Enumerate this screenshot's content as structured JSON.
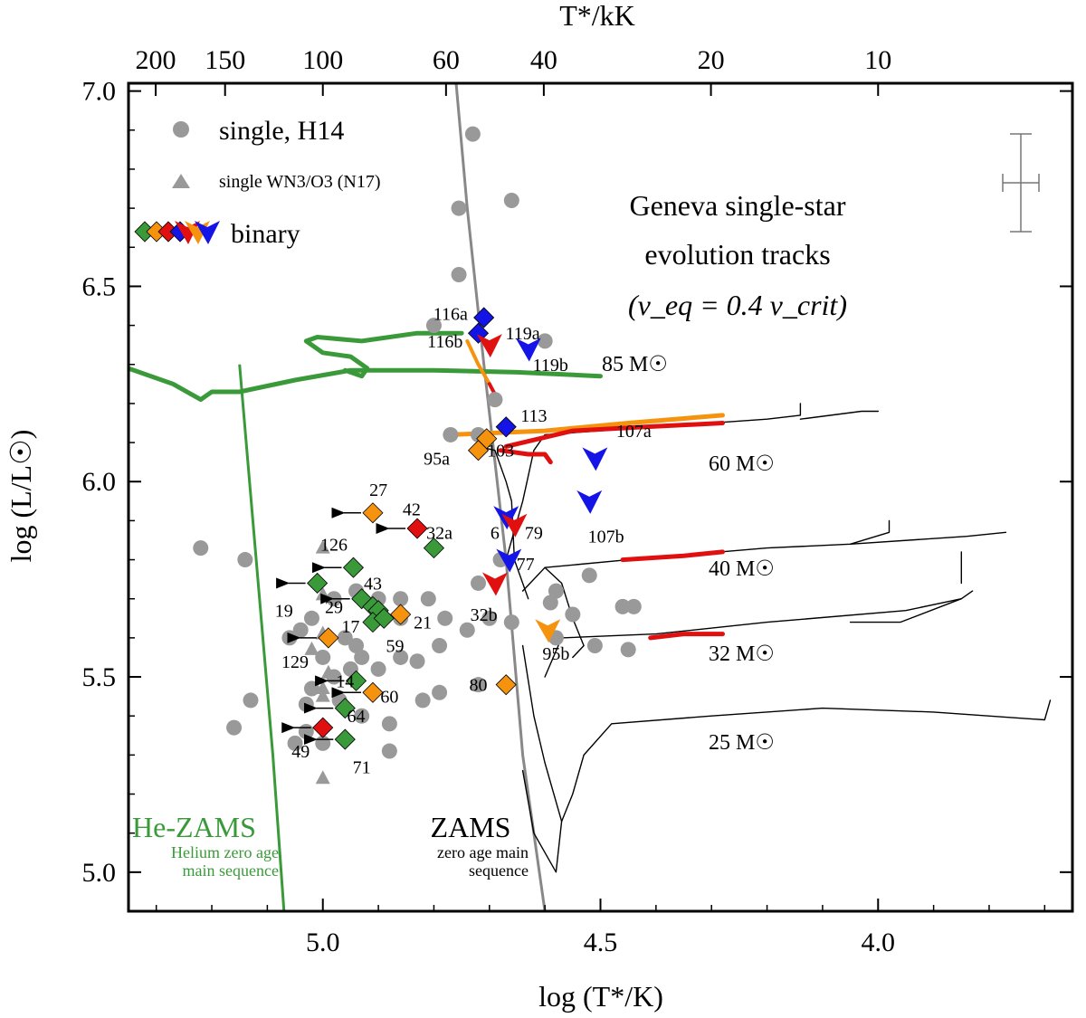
{
  "chart_data": {
    "type": "scatter",
    "title": "",
    "xlabel": "log (T*/K)",
    "ylabel": "log (L/L☉)",
    "top_xlabel": "T*/kK",
    "xlim": [
      5.35,
      3.65
    ],
    "ylim": [
      4.9,
      7.02
    ],
    "x_ticks": [
      5.0,
      4.5,
      4.0
    ],
    "x_tick_labels": [
      "5.0",
      "4.5",
      "4.0"
    ],
    "y_ticks": [
      5.0,
      5.5,
      6.0,
      6.5,
      7.0
    ],
    "y_tick_labels": [
      "5.0",
      "5.5",
      "6.0",
      "6.5",
      "7.0"
    ],
    "top_ticks_kK": [
      200,
      150,
      100,
      60,
      40,
      20,
      10
    ],
    "top_tick_labels": [
      "200",
      "150",
      "100",
      "60",
      "40",
      "20",
      "10"
    ],
    "colors": {
      "single": "#999999",
      "green": "#3a9a3a",
      "orange": "#f5930f",
      "red": "#e01010",
      "blue": "#1414e6",
      "track": "#000000",
      "zams": "#888888"
    },
    "legend": {
      "single": "single, H14",
      "single_wn3": "single WN3/O3 (N17)",
      "binary": "binary"
    },
    "annotation": {
      "line1": "Geneva single-star",
      "line2": "evolution tracks",
      "line3": "(v_eq = 0.4 v_crit)"
    },
    "he_zams": {
      "label": "He-ZAMS",
      "sub1": "Helium zero age",
      "sub2": "main sequence",
      "points": [
        [
          5.15,
          6.3
        ],
        [
          5.12,
          5.8
        ],
        [
          5.09,
          5.3
        ],
        [
          5.07,
          4.9
        ]
      ]
    },
    "zams": {
      "label": "ZAMS",
      "sub1": "zero age main",
      "sub2": "sequence",
      "points": [
        [
          4.6,
          4.9
        ],
        [
          4.64,
          5.3
        ],
        [
          4.67,
          5.8
        ],
        [
          4.71,
          6.3
        ],
        [
          4.74,
          6.7
        ],
        [
          4.76,
          7.02
        ]
      ]
    },
    "mass_labels": [
      "85 M☉",
      "60 M☉",
      "40 M☉",
      "32 M☉",
      "25 M☉"
    ],
    "tracks": [
      {
        "name": "85",
        "color": "#3a9a3a",
        "width": 5,
        "points": [
          [
            5.35,
            6.29
          ],
          [
            5.27,
            6.25
          ],
          [
            5.22,
            6.21
          ],
          [
            5.2,
            6.23
          ],
          [
            5.15,
            6.23
          ],
          [
            5.05,
            6.26
          ],
          [
            4.95,
            6.285
          ],
          [
            4.8,
            6.285
          ],
          [
            4.65,
            6.28
          ],
          [
            4.5,
            6.27
          ]
        ]
      },
      {
        "name": "85b",
        "color": "#3a9a3a",
        "width": 5,
        "points": [
          [
            4.96,
            6.285
          ],
          [
            4.93,
            6.27
          ],
          [
            4.92,
            6.29
          ],
          [
            4.95,
            6.32
          ],
          [
            5.0,
            6.33
          ],
          [
            5.03,
            6.36
          ],
          [
            5.01,
            6.37
          ],
          [
            4.93,
            6.36
          ],
          [
            4.83,
            6.38
          ],
          [
            4.75,
            6.38
          ]
        ]
      },
      {
        "name": "85c",
        "color": "#f5930f",
        "width": 4,
        "points": [
          [
            4.74,
            6.36
          ],
          [
            4.72,
            6.3
          ],
          [
            4.7,
            6.25
          ]
        ]
      },
      {
        "name": "85d",
        "color": "#e01010",
        "width": 4,
        "points": [
          [
            4.7,
            6.25
          ],
          [
            4.685,
            6.21
          ]
        ]
      },
      {
        "name": "60",
        "color": "#000000",
        "width": 1.4,
        "points": [
          [
            4.67,
            5.8
          ],
          [
            4.64,
            5.95
          ],
          [
            4.62,
            6.08
          ],
          [
            4.6,
            6.12
          ],
          [
            4.4,
            6.14
          ],
          [
            4.2,
            6.16
          ],
          [
            4.14,
            6.17
          ],
          [
            4.14,
            6.2
          ]
        ]
      },
      {
        "name": "60b",
        "color": "#000000",
        "width": 1.4,
        "points": [
          [
            4.14,
            6.16
          ],
          [
            4.03,
            6.18
          ],
          [
            4.0,
            6.18
          ]
        ]
      },
      {
        "name": "60o",
        "color": "#f5930f",
        "width": 5,
        "points": [
          [
            4.77,
            6.12
          ],
          [
            4.6,
            6.13
          ],
          [
            4.45,
            6.15
          ],
          [
            4.28,
            6.17
          ]
        ]
      },
      {
        "name": "60r",
        "color": "#e01010",
        "width": 5,
        "points": [
          [
            4.67,
            6.09
          ],
          [
            4.55,
            6.13
          ],
          [
            4.42,
            6.14
          ],
          [
            4.28,
            6.15
          ]
        ]
      },
      {
        "name": "60r2",
        "color": "#e01010",
        "width": 5,
        "points": [
          [
            4.68,
            6.08
          ],
          [
            4.63,
            6.07
          ],
          [
            4.6,
            6.07
          ],
          [
            4.59,
            6.05
          ]
        ]
      },
      {
        "name": "40",
        "color": "#000000",
        "width": 1.4,
        "points": [
          [
            4.64,
            5.72
          ],
          [
            4.6,
            5.78
          ],
          [
            4.45,
            5.8
          ],
          [
            4.2,
            5.83
          ],
          [
            4.05,
            5.84
          ],
          [
            3.98,
            5.87
          ],
          [
            3.98,
            5.9
          ]
        ]
      },
      {
        "name": "40b",
        "color": "#000000",
        "width": 1.4,
        "points": [
          [
            4.05,
            5.84
          ],
          [
            3.84,
            5.86
          ],
          [
            3.77,
            5.87
          ]
        ]
      },
      {
        "name": "40c",
        "color": "#000000",
        "width": 1.4,
        "points": [
          [
            4.6,
            5.78
          ],
          [
            4.57,
            5.74
          ],
          [
            4.55,
            5.65
          ],
          [
            4.53,
            5.58
          ],
          [
            4.55,
            5.55
          ]
        ]
      },
      {
        "name": "40r",
        "color": "#e01010",
        "width": 5,
        "points": [
          [
            4.46,
            5.8
          ],
          [
            4.35,
            5.81
          ],
          [
            4.28,
            5.82
          ]
        ]
      },
      {
        "name": "32",
        "color": "#000000",
        "width": 1.4,
        "points": [
          [
            4.6,
            5.5
          ],
          [
            4.57,
            5.6
          ],
          [
            4.4,
            5.61
          ],
          [
            4.2,
            5.64
          ],
          [
            3.95,
            5.67
          ],
          [
            3.85,
            5.7
          ],
          [
            3.83,
            5.72
          ]
        ]
      },
      {
        "name": "32b",
        "color": "#000000",
        "width": 1.4,
        "points": [
          [
            3.85,
            5.74
          ],
          [
            3.85,
            5.82
          ]
        ]
      },
      {
        "name": "32c",
        "color": "#000000",
        "width": 1.4,
        "points": [
          [
            3.85,
            5.7
          ],
          [
            3.96,
            5.64
          ],
          [
            4.05,
            5.64
          ]
        ]
      },
      {
        "name": "32r",
        "color": "#e01010",
        "width": 5,
        "points": [
          [
            4.41,
            5.6
          ],
          [
            4.35,
            5.61
          ],
          [
            4.28,
            5.61
          ]
        ]
      },
      {
        "name": "25",
        "color": "#000000",
        "width": 1.4,
        "points": [
          [
            4.57,
            5.13
          ],
          [
            4.55,
            5.2
          ],
          [
            4.53,
            5.3
          ],
          [
            4.48,
            5.38
          ],
          [
            4.3,
            5.4
          ],
          [
            4.1,
            5.42
          ],
          [
            3.9,
            5.41
          ],
          [
            3.7,
            5.39
          ],
          [
            3.69,
            5.44
          ]
        ]
      },
      {
        "name": "ms60",
        "color": "#000000",
        "width": 1.4,
        "points": [
          [
            4.63,
            5.7
          ],
          [
            4.655,
            5.8
          ],
          [
            4.66,
            5.95
          ],
          [
            4.67,
            6.0
          ],
          [
            4.69,
            6.08
          ],
          [
            4.72,
            6.09
          ]
        ]
      },
      {
        "name": "ms25",
        "color": "#000000",
        "width": 1.4,
        "points": [
          [
            4.64,
            5.26
          ],
          [
            4.62,
            5.1
          ],
          [
            4.58,
            5.0
          ],
          [
            4.57,
            5.13
          ]
        ]
      },
      {
        "name": "ms32",
        "color": "#000000",
        "width": 1.4,
        "points": [
          [
            4.64,
            5.58
          ],
          [
            4.62,
            5.4
          ],
          [
            4.6,
            5.28
          ],
          [
            4.57,
            5.13
          ]
        ]
      }
    ],
    "single_points": [
      [
        4.73,
        6.89
      ],
      [
        4.66,
        6.72
      ],
      [
        4.755,
        6.7
      ],
      [
        4.755,
        6.53
      ],
      [
        4.6,
        6.36
      ],
      [
        4.69,
        6.21
      ],
      [
        4.8,
        6.4
      ],
      [
        4.77,
        6.12
      ],
      [
        4.72,
        6.12
      ],
      [
        5.22,
        5.83
      ],
      [
        5.14,
        5.8
      ],
      [
        4.68,
        5.8
      ],
      [
        4.72,
        5.74
      ],
      [
        4.58,
        5.72
      ],
      [
        4.59,
        5.69
      ],
      [
        4.52,
        5.76
      ],
      [
        4.58,
        5.6
      ],
      [
        4.66,
        5.64
      ],
      [
        4.7,
        5.65
      ],
      [
        4.55,
        5.66
      ],
      [
        4.46,
        5.68
      ],
      [
        4.44,
        5.68
      ],
      [
        4.45,
        5.57
      ],
      [
        4.51,
        5.58
      ],
      [
        4.81,
        5.7
      ],
      [
        4.86,
        5.7
      ],
      [
        4.9,
        5.7
      ],
      [
        4.94,
        5.72
      ],
      [
        4.98,
        5.7
      ],
      [
        5.02,
        5.65
      ],
      [
        5.0,
        5.55
      ],
      [
        5.04,
        5.62
      ],
      [
        5.06,
        5.6
      ],
      [
        4.96,
        5.6
      ],
      [
        4.94,
        5.58
      ],
      [
        4.93,
        5.55
      ],
      [
        4.86,
        5.55
      ],
      [
        4.83,
        5.54
      ],
      [
        4.79,
        5.58
      ],
      [
        4.9,
        5.52
      ],
      [
        4.95,
        5.52
      ],
      [
        4.98,
        5.5
      ],
      [
        5.02,
        5.47
      ],
      [
        5.03,
        5.43
      ],
      [
        4.97,
        5.44
      ],
      [
        4.93,
        5.4
      ],
      [
        4.88,
        5.38
      ],
      [
        4.82,
        5.44
      ],
      [
        4.79,
        5.46
      ],
      [
        4.72,
        5.48
      ],
      [
        4.88,
        5.31
      ],
      [
        5.05,
        5.33
      ],
      [
        5.0,
        5.33
      ],
      [
        5.03,
        5.36
      ],
      [
        5.13,
        5.44
      ],
      [
        5.16,
        5.37
      ],
      [
        4.74,
        5.62
      ],
      [
        4.78,
        5.65
      ],
      [
        4.86,
        5.65
      ]
    ],
    "single_triangles": [
      [
        5.0,
        5.83
      ],
      [
        5.0,
        5.71
      ],
      [
        5.0,
        5.61
      ],
      [
        5.02,
        5.57
      ],
      [
        4.99,
        5.51
      ],
      [
        5.0,
        5.47
      ],
      [
        5.0,
        5.45
      ],
      [
        5.0,
        5.24
      ]
    ],
    "binaries": [
      {
        "label": "116a",
        "marker": "diamond",
        "color": "blue",
        "x": 4.71,
        "y": 6.42,
        "lx": 4.77,
        "ly": 6.43
      },
      {
        "label": "116b",
        "marker": "diamond",
        "color": "blue",
        "x": 4.72,
        "y": 6.38,
        "lx": 4.78,
        "ly": 6.36
      },
      {
        "label": "119a",
        "marker": "tri",
        "color": "red",
        "x": 4.7,
        "y": 6.35,
        "lx": 4.64,
        "ly": 6.38
      },
      {
        "label": "119b",
        "marker": "tri",
        "color": "blue",
        "x": 4.63,
        "y": 6.34,
        "lx": 4.59,
        "ly": 6.3
      },
      {
        "label": "113",
        "marker": "diamond",
        "color": "blue",
        "x": 4.67,
        "y": 6.14,
        "lx": 4.62,
        "ly": 6.17
      },
      {
        "label": "107a",
        "marker": "none",
        "color": "orange",
        "x": 4.45,
        "y": 6.15,
        "lx": 4.44,
        "ly": 6.13
      },
      {
        "label": "103",
        "marker": "diamond",
        "color": "orange",
        "x": 4.705,
        "y": 6.11,
        "lx": 4.68,
        "ly": 6.08
      },
      {
        "label": "95a",
        "marker": "diamond",
        "color": "orange",
        "x": 4.72,
        "y": 6.08,
        "lx": 4.795,
        "ly": 6.06
      },
      {
        "label": "",
        "marker": "tri",
        "color": "blue",
        "x": 4.51,
        "y": 6.06,
        "lx": 0,
        "ly": 0
      },
      {
        "label": "107b",
        "marker": "tri",
        "color": "blue",
        "x": 4.52,
        "y": 5.95,
        "lx": 4.49,
        "ly": 5.86
      },
      {
        "label": "6",
        "marker": "tri",
        "color": "blue",
        "x": 4.67,
        "y": 5.91,
        "lx": 4.69,
        "ly": 5.87
      },
      {
        "label": "79",
        "marker": "tri",
        "color": "red",
        "x": 4.655,
        "y": 5.89,
        "lx": 4.62,
        "ly": 5.87
      },
      {
        "label": "77",
        "marker": "tri",
        "color": "blue",
        "x": 4.665,
        "y": 5.8,
        "lx": 4.635,
        "ly": 5.79
      },
      {
        "label": "32b",
        "marker": "tri",
        "color": "red",
        "x": 4.69,
        "y": 5.74,
        "lx": 4.71,
        "ly": 5.66
      },
      {
        "label": "95b",
        "marker": "tri",
        "color": "orange",
        "x": 4.595,
        "y": 5.62,
        "lx": 4.58,
        "ly": 5.56
      },
      {
        "label": "80",
        "marker": "diamond",
        "color": "orange",
        "x": 4.67,
        "y": 5.48,
        "lx": 4.72,
        "ly": 5.48
      },
      {
        "label": "27",
        "marker": "diamond",
        "color": "orange",
        "x": 4.91,
        "y": 5.92,
        "lx": 4.9,
        "ly": 5.98,
        "arrow": true
      },
      {
        "label": "42",
        "marker": "diamond",
        "color": "red",
        "x": 4.83,
        "y": 5.88,
        "lx": 4.84,
        "ly": 5.93,
        "arrow": true
      },
      {
        "label": "32a",
        "marker": "diamond",
        "color": "green",
        "x": 4.8,
        "y": 5.83,
        "lx": 4.79,
        "ly": 5.87
      },
      {
        "label": "126",
        "marker": "diamond",
        "color": "green",
        "x": 4.945,
        "y": 5.78,
        "lx": 4.98,
        "ly": 5.84,
        "arrow": true
      },
      {
        "label": "43",
        "marker": "diamond",
        "color": "green",
        "x": 4.93,
        "y": 5.7,
        "lx": 4.91,
        "ly": 5.74,
        "arrow": true
      },
      {
        "label": "19",
        "marker": "diamond",
        "color": "green",
        "x": 5.01,
        "y": 5.74,
        "lx": 5.07,
        "ly": 5.67,
        "arrow": true
      },
      {
        "label": "29",
        "marker": "diamond",
        "color": "green",
        "x": 4.91,
        "y": 5.68,
        "lx": 4.98,
        "ly": 5.68
      },
      {
        "label": "",
        "marker": "diamond",
        "color": "green",
        "x": 4.9,
        "y": 5.67,
        "lx": 0,
        "ly": 0
      },
      {
        "label": "17",
        "marker": "diamond",
        "color": "green",
        "x": 4.91,
        "y": 5.64,
        "lx": 4.95,
        "ly": 5.63
      },
      {
        "label": "21",
        "marker": "diamond",
        "color": "orange",
        "x": 4.86,
        "y": 5.66,
        "lx": 4.82,
        "ly": 5.64
      },
      {
        "label": "",
        "marker": "diamond",
        "color": "green",
        "x": 4.89,
        "y": 5.65,
        "lx": 0,
        "ly": 0
      },
      {
        "label": "59",
        "marker": "none",
        "color": "green",
        "x": 4.88,
        "y": 5.58,
        "lx": 4.87,
        "ly": 5.58
      },
      {
        "label": "129",
        "marker": "diamond",
        "color": "orange",
        "x": 4.99,
        "y": 5.6,
        "lx": 5.05,
        "ly": 5.54,
        "arrow": true
      },
      {
        "label": "14",
        "marker": "diamond",
        "color": "green",
        "x": 4.94,
        "y": 5.49,
        "lx": 4.96,
        "ly": 5.49,
        "arrow": true
      },
      {
        "label": "60",
        "marker": "diamond",
        "color": "orange",
        "x": 4.91,
        "y": 5.46,
        "lx": 4.88,
        "ly": 5.45,
        "arrow": true
      },
      {
        "label": "64",
        "marker": "diamond",
        "color": "green",
        "x": 4.96,
        "y": 5.42,
        "lx": 4.94,
        "ly": 5.4,
        "arrow": true
      },
      {
        "label": "49",
        "marker": "diamond",
        "color": "red",
        "x": 5.0,
        "y": 5.37,
        "lx": 5.04,
        "ly": 5.31,
        "arrow": true
      },
      {
        "label": "71",
        "marker": "diamond",
        "color": "green",
        "x": 4.96,
        "y": 5.34,
        "lx": 4.93,
        "ly": 5.27,
        "arrow": true
      }
    ]
  }
}
